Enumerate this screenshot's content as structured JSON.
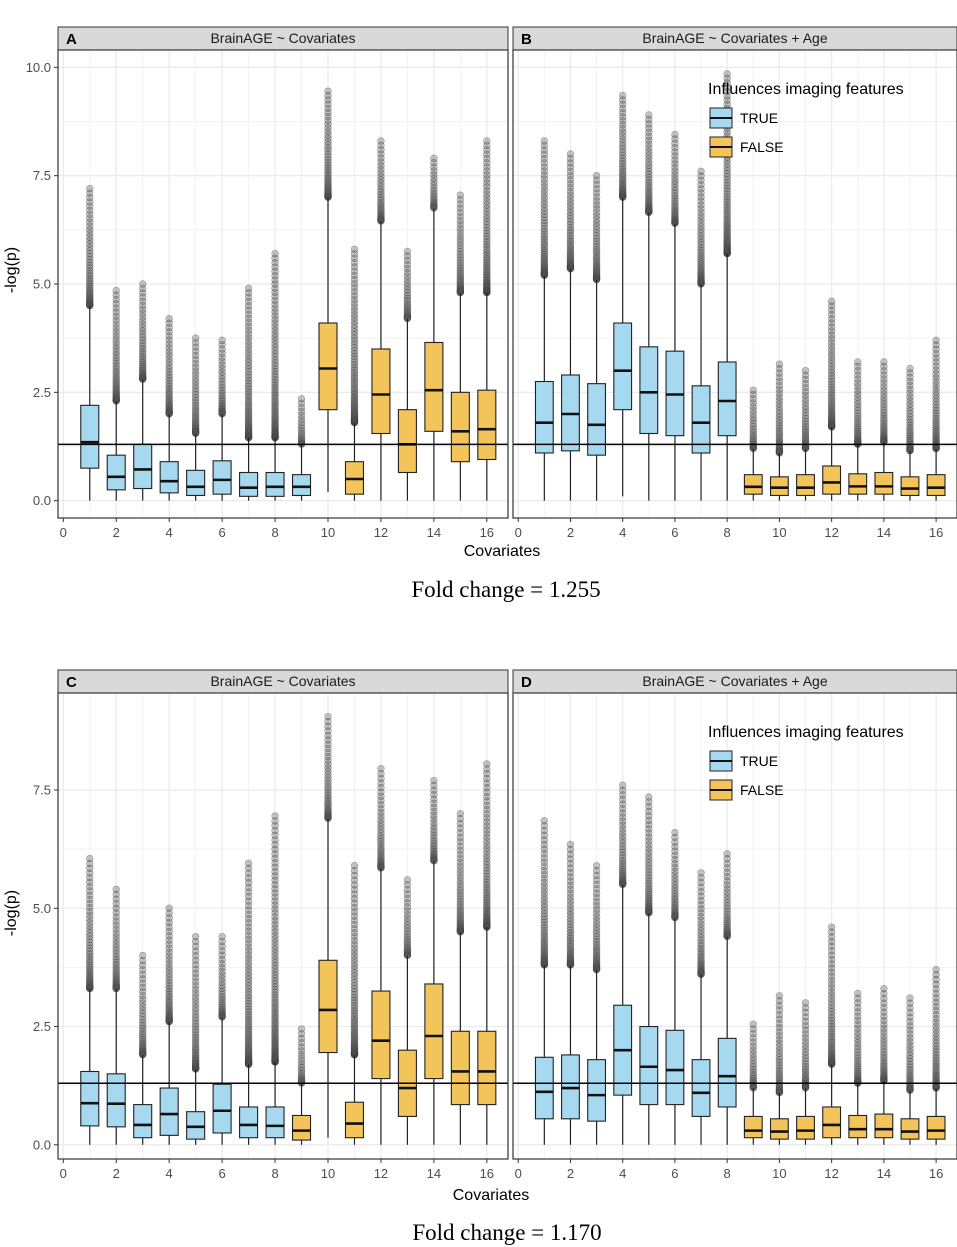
{
  "figure": {
    "ylabel": "-log(p)",
    "xlabel": "Covariates",
    "colors": {
      "true_fill": "#a6d8f0",
      "false_fill": "#f2c45a",
      "outlier": "#555555",
      "grid": "#ebebeb",
      "strip_bg": "#d9d9d9"
    },
    "legend": {
      "title": "Influences imaging features",
      "labels": [
        "TRUE",
        "FALSE"
      ]
    },
    "captions": [
      "Fold change = 1.255",
      "Fold change = 1.170"
    ]
  },
  "chart_data": [
    {
      "type": "box",
      "panel": "A",
      "title": "BrainAGE ~ Covariates",
      "xlabel": "Covariates",
      "ylabel": "-log(p)",
      "xlim": [
        -0.2,
        16.8
      ],
      "ylim": [
        -0.4,
        10.4
      ],
      "xticks": [
        0,
        2,
        4,
        6,
        8,
        10,
        12,
        14,
        16
      ],
      "yticks": [
        0.0,
        2.5,
        5.0,
        7.5,
        10.0
      ],
      "ytick_labels": [
        "0.0",
        "2.5",
        "5.0",
        "7.5",
        "10.0"
      ],
      "hline": 1.3,
      "legend": false,
      "series": [
        {
          "x": 1,
          "group": "TRUE",
          "lo": 0,
          "q1": 0.75,
          "med": 1.35,
          "q3": 2.2,
          "hi": 4.5,
          "out_max": 7.2
        },
        {
          "x": 2,
          "group": "TRUE",
          "lo": 0,
          "q1": 0.25,
          "med": 0.55,
          "q3": 1.05,
          "hi": 2.3,
          "out_max": 4.85
        },
        {
          "x": 3,
          "group": "TRUE",
          "lo": 0,
          "q1": 0.28,
          "med": 0.72,
          "q3": 1.3,
          "hi": 2.8,
          "out_max": 5.0
        },
        {
          "x": 4,
          "group": "TRUE",
          "lo": 0,
          "q1": 0.18,
          "med": 0.45,
          "q3": 0.9,
          "hi": 2.0,
          "out_max": 4.2
        },
        {
          "x": 5,
          "group": "TRUE",
          "lo": 0,
          "q1": 0.12,
          "med": 0.32,
          "q3": 0.7,
          "hi": 1.55,
          "out_max": 3.75
        },
        {
          "x": 6,
          "group": "TRUE",
          "lo": 0,
          "q1": 0.15,
          "med": 0.48,
          "q3": 0.92,
          "hi": 2.0,
          "out_max": 3.7
        },
        {
          "x": 7,
          "group": "TRUE",
          "lo": 0,
          "q1": 0.1,
          "med": 0.3,
          "q3": 0.65,
          "hi": 1.45,
          "out_max": 4.9
        },
        {
          "x": 8,
          "group": "TRUE",
          "lo": 0,
          "q1": 0.1,
          "med": 0.32,
          "q3": 0.65,
          "hi": 1.45,
          "out_max": 5.7
        },
        {
          "x": 9,
          "group": "TRUE",
          "lo": 0,
          "q1": 0.12,
          "med": 0.32,
          "q3": 0.6,
          "hi": 1.3,
          "out_max": 2.35
        },
        {
          "x": 10,
          "group": "FALSE",
          "lo": 0.2,
          "q1": 2.1,
          "med": 3.05,
          "q3": 4.1,
          "hi": 7.0,
          "out_max": 9.45
        },
        {
          "x": 11,
          "group": "FALSE",
          "lo": 0,
          "q1": 0.15,
          "med": 0.5,
          "q3": 0.9,
          "hi": 1.8,
          "out_max": 5.8
        },
        {
          "x": 12,
          "group": "FALSE",
          "lo": 0,
          "q1": 1.55,
          "med": 2.45,
          "q3": 3.5,
          "hi": 6.45,
          "out_max": 8.3
        },
        {
          "x": 13,
          "group": "FALSE",
          "lo": 0,
          "q1": 0.65,
          "med": 1.3,
          "q3": 2.1,
          "hi": 4.2,
          "out_max": 5.75
        },
        {
          "x": 14,
          "group": "FALSE",
          "lo": 0,
          "q1": 1.6,
          "med": 2.55,
          "q3": 3.65,
          "hi": 6.75,
          "out_max": 7.9
        },
        {
          "x": 15,
          "group": "FALSE",
          "lo": 0,
          "q1": 0.9,
          "med": 1.6,
          "q3": 2.5,
          "hi": 4.8,
          "out_max": 7.05
        },
        {
          "x": 16,
          "group": "FALSE",
          "lo": 0,
          "q1": 0.95,
          "med": 1.65,
          "q3": 2.55,
          "hi": 4.8,
          "out_max": 8.3
        }
      ]
    },
    {
      "type": "box",
      "panel": "B",
      "title": "BrainAGE ~ Covariates + Age",
      "xlabel": "Covariates",
      "ylabel": "-log(p)",
      "xlim": [
        -0.2,
        16.8
      ],
      "ylim": [
        -0.4,
        10.4
      ],
      "xticks": [
        0,
        2,
        4,
        6,
        8,
        10,
        12,
        14,
        16
      ],
      "yticks": [
        0.0,
        2.5,
        5.0,
        7.5,
        10.0
      ],
      "hline": 1.3,
      "legend": true,
      "series": [
        {
          "x": 1,
          "group": "TRUE",
          "lo": 0,
          "q1": 1.1,
          "med": 1.8,
          "q3": 2.75,
          "hi": 5.2,
          "out_max": 8.3
        },
        {
          "x": 2,
          "group": "TRUE",
          "lo": 0,
          "q1": 1.15,
          "med": 2.0,
          "q3": 2.9,
          "hi": 5.35,
          "out_max": 8.0
        },
        {
          "x": 3,
          "group": "TRUE",
          "lo": 0,
          "q1": 1.05,
          "med": 1.75,
          "q3": 2.7,
          "hi": 5.1,
          "out_max": 7.5
        },
        {
          "x": 4,
          "group": "TRUE",
          "lo": 0.1,
          "q1": 2.1,
          "med": 3.0,
          "q3": 4.1,
          "hi": 7.0,
          "out_max": 9.35
        },
        {
          "x": 5,
          "group": "TRUE",
          "lo": 0,
          "q1": 1.55,
          "med": 2.5,
          "q3": 3.55,
          "hi": 6.65,
          "out_max": 8.9
        },
        {
          "x": 6,
          "group": "TRUE",
          "lo": 0,
          "q1": 1.5,
          "med": 2.45,
          "q3": 3.45,
          "hi": 6.4,
          "out_max": 8.45
        },
        {
          "x": 7,
          "group": "TRUE",
          "lo": 0,
          "q1": 1.1,
          "med": 1.8,
          "q3": 2.65,
          "hi": 5.0,
          "out_max": 7.6
        },
        {
          "x": 8,
          "group": "TRUE",
          "lo": 0,
          "q1": 1.5,
          "med": 2.3,
          "q3": 3.2,
          "hi": 5.7,
          "out_max": 9.85
        },
        {
          "x": 9,
          "group": "FALSE",
          "lo": 0,
          "q1": 0.15,
          "med": 0.32,
          "q3": 0.6,
          "hi": 1.2,
          "out_max": 2.55
        },
        {
          "x": 10,
          "group": "FALSE",
          "lo": 0,
          "q1": 0.12,
          "med": 0.3,
          "q3": 0.55,
          "hi": 1.1,
          "out_max": 3.15
        },
        {
          "x": 11,
          "group": "FALSE",
          "lo": 0,
          "q1": 0.12,
          "med": 0.3,
          "q3": 0.6,
          "hi": 1.2,
          "out_max": 3.0
        },
        {
          "x": 12,
          "group": "FALSE",
          "lo": 0,
          "q1": 0.15,
          "med": 0.42,
          "q3": 0.8,
          "hi": 1.7,
          "out_max": 4.6
        },
        {
          "x": 13,
          "group": "FALSE",
          "lo": 0,
          "q1": 0.15,
          "med": 0.33,
          "q3": 0.62,
          "hi": 1.3,
          "out_max": 3.2
        },
        {
          "x": 14,
          "group": "FALSE",
          "lo": 0,
          "q1": 0.15,
          "med": 0.33,
          "q3": 0.65,
          "hi": 1.35,
          "out_max": 3.2
        },
        {
          "x": 15,
          "group": "FALSE",
          "lo": 0,
          "q1": 0.12,
          "med": 0.28,
          "q3": 0.55,
          "hi": 1.15,
          "out_max": 3.05
        },
        {
          "x": 16,
          "group": "FALSE",
          "lo": 0,
          "q1": 0.12,
          "med": 0.3,
          "q3": 0.6,
          "hi": 1.2,
          "out_max": 3.7
        }
      ]
    },
    {
      "type": "box",
      "panel": "C",
      "title": "BrainAGE ~ Covariates",
      "xlabel": "Covariates",
      "ylabel": "-log(p)",
      "xlim": [
        -0.2,
        16.8
      ],
      "ylim": [
        -0.3,
        9.55
      ],
      "xticks": [
        0,
        2,
        4,
        6,
        8,
        10,
        12,
        14,
        16
      ],
      "yticks": [
        0.0,
        2.5,
        5.0,
        7.5
      ],
      "ytick_labels": [
        "0.0",
        "2.5",
        "5.0",
        "7.5"
      ],
      "hline": 1.3,
      "legend": false,
      "series": [
        {
          "x": 1,
          "group": "TRUE",
          "lo": 0,
          "q1": 0.4,
          "med": 0.88,
          "q3": 1.55,
          "hi": 3.3,
          "out_max": 6.05
        },
        {
          "x": 2,
          "group": "TRUE",
          "lo": 0,
          "q1": 0.38,
          "med": 0.87,
          "q3": 1.5,
          "hi": 3.3,
          "out_max": 5.4
        },
        {
          "x": 3,
          "group": "TRUE",
          "lo": 0,
          "q1": 0.15,
          "med": 0.42,
          "q3": 0.85,
          "hi": 1.9,
          "out_max": 4.0
        },
        {
          "x": 4,
          "group": "TRUE",
          "lo": 0,
          "q1": 0.2,
          "med": 0.65,
          "q3": 1.2,
          "hi": 2.6,
          "out_max": 5.0
        },
        {
          "x": 5,
          "group": "TRUE",
          "lo": 0,
          "q1": 0.12,
          "med": 0.38,
          "q3": 0.7,
          "hi": 1.6,
          "out_max": 4.4
        },
        {
          "x": 6,
          "group": "TRUE",
          "lo": 0,
          "q1": 0.25,
          "med": 0.72,
          "q3": 1.28,
          "hi": 2.7,
          "out_max": 4.4
        },
        {
          "x": 7,
          "group": "TRUE",
          "lo": 0,
          "q1": 0.15,
          "med": 0.42,
          "q3": 0.8,
          "hi": 1.7,
          "out_max": 5.95
        },
        {
          "x": 8,
          "group": "TRUE",
          "lo": 0,
          "q1": 0.15,
          "med": 0.4,
          "q3": 0.8,
          "hi": 1.75,
          "out_max": 6.95
        },
        {
          "x": 9,
          "group": "FALSE",
          "lo": 0,
          "q1": 0.1,
          "med": 0.3,
          "q3": 0.62,
          "hi": 1.3,
          "out_max": 2.45
        },
        {
          "x": 10,
          "group": "FALSE",
          "lo": 0.15,
          "q1": 1.95,
          "med": 2.85,
          "q3": 3.9,
          "hi": 6.9,
          "out_max": 9.05
        },
        {
          "x": 11,
          "group": "FALSE",
          "lo": 0,
          "q1": 0.15,
          "med": 0.45,
          "q3": 0.9,
          "hi": 1.9,
          "out_max": 5.9
        },
        {
          "x": 12,
          "group": "FALSE",
          "lo": 0,
          "q1": 1.4,
          "med": 2.2,
          "q3": 3.25,
          "hi": 5.85,
          "out_max": 7.95
        },
        {
          "x": 13,
          "group": "FALSE",
          "lo": 0,
          "q1": 0.6,
          "med": 1.2,
          "q3": 2.0,
          "hi": 4.0,
          "out_max": 5.6
        },
        {
          "x": 14,
          "group": "FALSE",
          "lo": 0,
          "q1": 1.4,
          "med": 2.3,
          "q3": 3.4,
          "hi": 6.0,
          "out_max": 7.7
        },
        {
          "x": 15,
          "group": "FALSE",
          "lo": 0,
          "q1": 0.85,
          "med": 1.55,
          "q3": 2.4,
          "hi": 4.5,
          "out_max": 7.0
        },
        {
          "x": 16,
          "group": "FALSE",
          "lo": 0,
          "q1": 0.85,
          "med": 1.55,
          "q3": 2.4,
          "hi": 4.6,
          "out_max": 8.05
        }
      ]
    },
    {
      "type": "box",
      "panel": "D",
      "title": "BrainAGE ~ Covariates + Age",
      "xlabel": "Covariates",
      "ylabel": "-log(p)",
      "xlim": [
        -0.2,
        16.8
      ],
      "ylim": [
        -0.3,
        9.55
      ],
      "xticks": [
        0,
        2,
        4,
        6,
        8,
        10,
        12,
        14,
        16
      ],
      "yticks": [
        0.0,
        2.5,
        5.0,
        7.5
      ],
      "hline": 1.3,
      "legend": true,
      "series": [
        {
          "x": 1,
          "group": "TRUE",
          "lo": 0,
          "q1": 0.55,
          "med": 1.12,
          "q3": 1.85,
          "hi": 3.8,
          "out_max": 6.85
        },
        {
          "x": 2,
          "group": "TRUE",
          "lo": 0,
          "q1": 0.55,
          "med": 1.2,
          "q3": 1.9,
          "hi": 3.8,
          "out_max": 6.35
        },
        {
          "x": 3,
          "group": "TRUE",
          "lo": 0,
          "q1": 0.5,
          "med": 1.05,
          "q3": 1.8,
          "hi": 3.7,
          "out_max": 5.9
        },
        {
          "x": 4,
          "group": "TRUE",
          "lo": 0,
          "q1": 1.05,
          "med": 2.0,
          "q3": 2.95,
          "hi": 5.5,
          "out_max": 7.6
        },
        {
          "x": 5,
          "group": "TRUE",
          "lo": 0,
          "q1": 0.85,
          "med": 1.65,
          "q3": 2.5,
          "hi": 4.9,
          "out_max": 7.35
        },
        {
          "x": 6,
          "group": "TRUE",
          "lo": 0,
          "q1": 0.85,
          "med": 1.58,
          "q3": 2.42,
          "hi": 4.8,
          "out_max": 6.6
        },
        {
          "x": 7,
          "group": "TRUE",
          "lo": 0,
          "q1": 0.6,
          "med": 1.1,
          "q3": 1.8,
          "hi": 3.6,
          "out_max": 5.75
        },
        {
          "x": 8,
          "group": "TRUE",
          "lo": 0,
          "q1": 0.8,
          "med": 1.45,
          "q3": 2.25,
          "hi": 4.4,
          "out_max": 6.15
        },
        {
          "x": 9,
          "group": "FALSE",
          "lo": 0,
          "q1": 0.15,
          "med": 0.3,
          "q3": 0.6,
          "hi": 1.2,
          "out_max": 2.55
        },
        {
          "x": 10,
          "group": "FALSE",
          "lo": 0,
          "q1": 0.12,
          "med": 0.28,
          "q3": 0.55,
          "hi": 1.1,
          "out_max": 3.15
        },
        {
          "x": 11,
          "group": "FALSE",
          "lo": 0,
          "q1": 0.12,
          "med": 0.3,
          "q3": 0.6,
          "hi": 1.2,
          "out_max": 3.0
        },
        {
          "x": 12,
          "group": "FALSE",
          "lo": 0,
          "q1": 0.15,
          "med": 0.42,
          "q3": 0.8,
          "hi": 1.7,
          "out_max": 4.6
        },
        {
          "x": 13,
          "group": "FALSE",
          "lo": 0,
          "q1": 0.15,
          "med": 0.33,
          "q3": 0.62,
          "hi": 1.3,
          "out_max": 3.2
        },
        {
          "x": 14,
          "group": "FALSE",
          "lo": 0,
          "q1": 0.15,
          "med": 0.33,
          "q3": 0.65,
          "hi": 1.35,
          "out_max": 3.3
        },
        {
          "x": 15,
          "group": "FALSE",
          "lo": 0,
          "q1": 0.12,
          "med": 0.28,
          "q3": 0.55,
          "hi": 1.15,
          "out_max": 3.1
        },
        {
          "x": 16,
          "group": "FALSE",
          "lo": 0,
          "q1": 0.12,
          "med": 0.3,
          "q3": 0.6,
          "hi": 1.2,
          "out_max": 3.7
        }
      ]
    }
  ]
}
